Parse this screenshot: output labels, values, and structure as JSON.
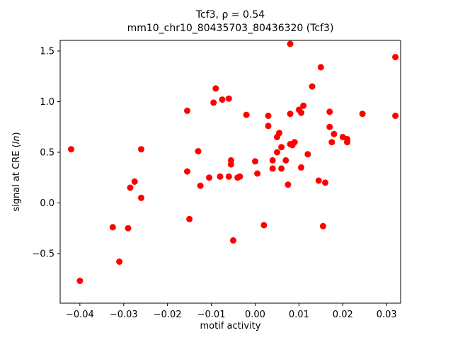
{
  "chart_data": {
    "type": "scatter",
    "title": "Tcf3, ρ = 0.54",
    "subtitle": "mm10_chr10_80435703_80436320 (Tcf3)",
    "xlabel": "motif activity",
    "ylabel": "signal at CRE (ln)",
    "ylabel_parts": [
      "signal at CRE (",
      "ln",
      ")"
    ],
    "marker_color": "#ff0000",
    "axis_color": "#000000",
    "xlim": [
      -0.0445,
      0.0332
    ],
    "ylim": [
      -0.99,
      1.605
    ],
    "x_ticks": {
      "values": [
        -0.04,
        -0.03,
        -0.02,
        -0.01,
        0.0,
        0.01,
        0.02,
        0.03
      ],
      "labels": [
        "−0.04",
        "−0.03",
        "−0.02",
        "−0.01",
        "0.00",
        "0.01",
        "0.02",
        "0.03"
      ]
    },
    "y_ticks": {
      "values": [
        -0.5,
        0.0,
        0.5,
        1.0,
        1.5
      ],
      "labels": [
        "−0.5",
        "0.0",
        "0.5",
        "1.0",
        "1.5"
      ]
    },
    "points": [
      [
        -0.042,
        0.53
      ],
      [
        -0.04,
        -0.77
      ],
      [
        -0.0325,
        -0.24
      ],
      [
        -0.031,
        -0.58
      ],
      [
        -0.029,
        -0.25
      ],
      [
        -0.0285,
        0.15
      ],
      [
        -0.0275,
        0.21
      ],
      [
        -0.026,
        0.53
      ],
      [
        -0.026,
        0.05
      ],
      [
        -0.0155,
        0.91
      ],
      [
        -0.0155,
        0.31
      ],
      [
        -0.015,
        -0.16
      ],
      [
        -0.013,
        0.51
      ],
      [
        -0.0125,
        0.17
      ],
      [
        -0.0105,
        0.25
      ],
      [
        -0.0095,
        0.99
      ],
      [
        -0.009,
        1.13
      ],
      [
        -0.008,
        0.26
      ],
      [
        -0.0075,
        1.02
      ],
      [
        -0.006,
        1.03
      ],
      [
        -0.006,
        0.26
      ],
      [
        -0.0055,
        0.42
      ],
      [
        -0.0055,
        0.38
      ],
      [
        -0.005,
        -0.37
      ],
      [
        -0.004,
        0.25
      ],
      [
        -0.0035,
        0.26
      ],
      [
        -0.002,
        0.87
      ],
      [
        0.0,
        0.41
      ],
      [
        0.0005,
        0.29
      ],
      [
        0.002,
        -0.22
      ],
      [
        0.003,
        0.86
      ],
      [
        0.003,
        0.76
      ],
      [
        0.004,
        0.42
      ],
      [
        0.004,
        0.34
      ],
      [
        0.005,
        0.65
      ],
      [
        0.005,
        0.5
      ],
      [
        0.0055,
        0.69
      ],
      [
        0.006,
        0.55
      ],
      [
        0.006,
        0.34
      ],
      [
        0.007,
        0.42
      ],
      [
        0.008,
        1.57
      ],
      [
        0.008,
        0.88
      ],
      [
        0.008,
        0.58
      ],
      [
        0.0085,
        0.57
      ],
      [
        0.0075,
        0.18
      ],
      [
        0.009,
        0.6
      ],
      [
        0.01,
        0.92
      ],
      [
        0.0105,
        0.89
      ],
      [
        0.011,
        0.96
      ],
      [
        0.0105,
        0.35
      ],
      [
        0.012,
        0.48
      ],
      [
        0.013,
        1.15
      ],
      [
        0.015,
        1.34
      ],
      [
        0.0145,
        0.22
      ],
      [
        0.016,
        0.2
      ],
      [
        0.0155,
        -0.23
      ],
      [
        0.017,
        0.9
      ],
      [
        0.017,
        0.75
      ],
      [
        0.0175,
        0.6
      ],
      [
        0.018,
        0.68
      ],
      [
        0.02,
        0.65
      ],
      [
        0.021,
        0.6
      ],
      [
        0.021,
        0.63
      ],
      [
        0.0245,
        0.88
      ],
      [
        0.032,
        1.44
      ],
      [
        0.032,
        0.86
      ]
    ]
  }
}
